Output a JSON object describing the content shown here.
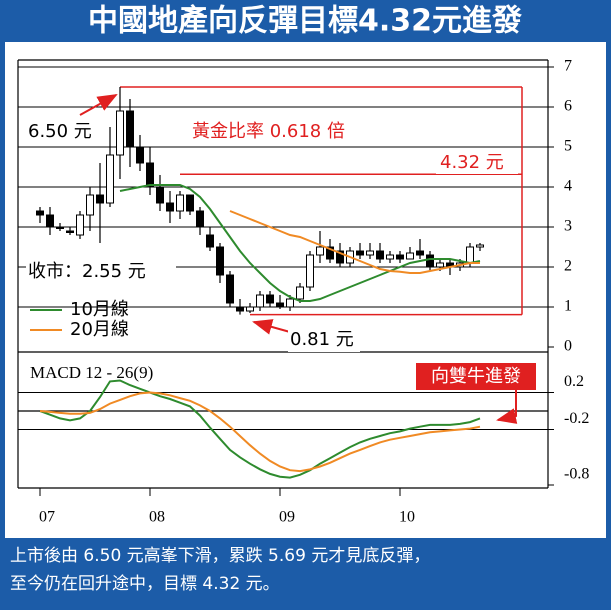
{
  "chart_data": [
    {
      "type": "candlestick",
      "title": "中國地產向反彈目標4.32元進發",
      "caption": [
        "上市後由 6.50 元高峯下滑，累跌 5.69 元才見底反彈，",
        "至今仍在回升途中，目標 4.32 元。"
      ],
      "x": [
        0,
        1,
        2,
        3,
        4,
        5,
        6,
        7,
        8,
        9,
        10,
        11,
        12,
        13,
        14,
        15,
        16,
        17,
        18,
        19,
        20,
        21,
        22,
        23,
        24,
        25,
        26,
        27,
        28,
        29,
        30,
        31,
        32,
        33,
        34,
        35,
        36,
        37,
        38,
        39,
        40,
        41,
        42,
        43,
        44
      ],
      "open": [
        3.4,
        3.3,
        3.0,
        2.9,
        2.8,
        3.3,
        3.8,
        3.6,
        4.8,
        5.9,
        5.0,
        4.6,
        4.0,
        3.6,
        3.4,
        3.8,
        3.4,
        2.8,
        2.5,
        1.8,
        1.0,
        0.9,
        1.0,
        1.3,
        1.1,
        1.0,
        1.2,
        1.5,
        2.3,
        2.5,
        2.4,
        2.1,
        2.4,
        2.3,
        2.4,
        2.2,
        2.3,
        2.2,
        2.4,
        2.3,
        2.0,
        2.1,
        2.0,
        2.1,
        2.5
      ],
      "high": [
        3.5,
        3.5,
        3.1,
        3.0,
        3.4,
        4.0,
        4.6,
        5.5,
        6.5,
        6.2,
        5.3,
        5.0,
        4.3,
        3.9,
        3.9,
        3.8,
        3.5,
        3.0,
        2.6,
        1.9,
        1.2,
        1.1,
        1.4,
        1.4,
        1.3,
        1.3,
        1.6,
        2.4,
        2.9,
        2.7,
        2.6,
        2.5,
        2.6,
        2.6,
        2.6,
        2.4,
        2.4,
        2.5,
        2.7,
        2.4,
        2.2,
        2.2,
        2.2,
        2.6,
        2.6
      ],
      "low": [
        3.1,
        2.8,
        2.9,
        2.8,
        2.7,
        2.9,
        2.6,
        3.5,
        4.2,
        4.5,
        4.4,
        3.8,
        3.4,
        3.1,
        3.2,
        3.3,
        2.8,
        2.4,
        1.6,
        1.0,
        0.81,
        0.85,
        0.9,
        1.0,
        0.95,
        0.9,
        1.1,
        1.4,
        2.1,
        2.1,
        2.0,
        2.0,
        2.2,
        2.2,
        2.1,
        2.1,
        2.1,
        2.2,
        2.2,
        1.9,
        1.9,
        1.8,
        1.9,
        2.0,
        2.4
      ],
      "close": [
        3.3,
        3.0,
        3.0,
        2.9,
        3.3,
        3.8,
        3.6,
        4.8,
        5.9,
        5.0,
        4.6,
        4.0,
        3.6,
        3.4,
        3.8,
        3.4,
        3.0,
        2.5,
        1.8,
        1.1,
        0.9,
        1.0,
        1.3,
        1.1,
        1.0,
        1.2,
        1.5,
        2.3,
        2.5,
        2.2,
        2.1,
        2.4,
        2.3,
        2.4,
        2.2,
        2.3,
        2.2,
        2.35,
        2.3,
        2.0,
        2.1,
        2.0,
        2.1,
        2.5,
        2.55
      ],
      "up_color": "#ffffff",
      "down_color": "#000000",
      "series": [
        {
          "name": "10月線",
          "color": "#2e8b2e",
          "values": [
            null,
            null,
            null,
            null,
            null,
            null,
            null,
            null,
            3.9,
            3.95,
            4.0,
            4.05,
            4.05,
            4.05,
            4.05,
            3.95,
            3.75,
            3.45,
            3.1,
            2.75,
            2.4,
            2.1,
            1.85,
            1.6,
            1.4,
            1.25,
            1.15,
            1.15,
            1.2,
            1.3,
            1.4,
            1.5,
            1.6,
            1.7,
            1.8,
            1.9,
            2.0,
            2.1,
            2.15,
            2.2,
            2.2,
            2.2,
            2.15,
            2.1,
            2.15
          ]
        },
        {
          "name": "20月線",
          "color": "#f08a24",
          "values": [
            null,
            null,
            null,
            null,
            null,
            null,
            null,
            null,
            null,
            null,
            null,
            null,
            null,
            null,
            null,
            null,
            null,
            null,
            null,
            3.4,
            3.3,
            3.2,
            3.1,
            3.0,
            2.9,
            2.8,
            2.75,
            2.65,
            2.55,
            2.45,
            2.35,
            2.25,
            2.15,
            2.05,
            1.95,
            1.9,
            1.88,
            1.85,
            1.85,
            1.9,
            1.95,
            2.0,
            2.05,
            2.1,
            2.1
          ]
        }
      ],
      "levels": {
        "high": 6.5,
        "low": 0.81,
        "target": 4.32
      },
      "notes": [
        "6.50 元",
        "黃金比率 0.618 倍",
        "4.32 元",
        "收市：2.55 元",
        "0.81 元"
      ],
      "xlim": [
        -2.2,
        50.8
      ],
      "ylim": [
        0,
        7
      ],
      "yticks": [
        0,
        1,
        2,
        3,
        4,
        5,
        6,
        7
      ],
      "grid": true
    },
    {
      "type": "line",
      "title": "MACD 12 - 26(9)",
      "x": [
        0,
        1,
        2,
        3,
        4,
        5,
        6,
        7,
        8,
        9,
        10,
        11,
        12,
        13,
        14,
        15,
        16,
        17,
        18,
        19,
        20,
        21,
        22,
        23,
        24,
        25,
        26,
        27,
        28,
        29,
        30,
        31,
        32,
        33,
        34,
        35,
        36,
        37,
        38,
        39,
        40,
        41,
        42,
        43,
        44
      ],
      "series": [
        {
          "color": "#2e8b2e",
          "values": [
            0,
            -0.04,
            -0.08,
            -0.1,
            -0.08,
            0,
            0.15,
            0.32,
            0.33,
            0.28,
            0.24,
            0.2,
            0.16,
            0.13,
            0.09,
            0.05,
            -0.05,
            -0.18,
            -0.3,
            -0.42,
            -0.5,
            -0.57,
            -0.63,
            -0.68,
            -0.71,
            -0.72,
            -0.69,
            -0.64,
            -0.57,
            -0.51,
            -0.45,
            -0.39,
            -0.34,
            -0.3,
            -0.27,
            -0.24,
            -0.22,
            -0.19,
            -0.17,
            -0.15,
            -0.15,
            -0.15,
            -0.14,
            -0.12,
            -0.08
          ]
        },
        {
          "color": "#f08a24",
          "values": [
            0,
            -0.01,
            -0.02,
            -0.03,
            -0.03,
            -0.02,
            0.02,
            0.08,
            0.12,
            0.16,
            0.19,
            0.2,
            0.19,
            0.17,
            0.14,
            0.11,
            0.06,
            0.0,
            -0.08,
            -0.17,
            -0.27,
            -0.37,
            -0.46,
            -0.54,
            -0.6,
            -0.64,
            -0.65,
            -0.63,
            -0.6,
            -0.56,
            -0.51,
            -0.46,
            -0.42,
            -0.38,
            -0.34,
            -0.31,
            -0.29,
            -0.27,
            -0.25,
            -0.23,
            -0.22,
            -0.21,
            -0.2,
            -0.19,
            -0.17
          ]
        }
      ],
      "note": "向雙牛進發",
      "xlim": [
        -2.2,
        50.8
      ],
      "xticks": [
        {
          "value": 0,
          "label": "07"
        },
        {
          "value": 11,
          "label": "08"
        },
        {
          "value": 24,
          "label": "09"
        },
        {
          "value": 36,
          "label": "10"
        }
      ],
      "ylim": [
        -0.8,
        0.4
      ],
      "yticks": [
        0.2,
        -0.2,
        -0.8
      ],
      "grid": true
    }
  ]
}
